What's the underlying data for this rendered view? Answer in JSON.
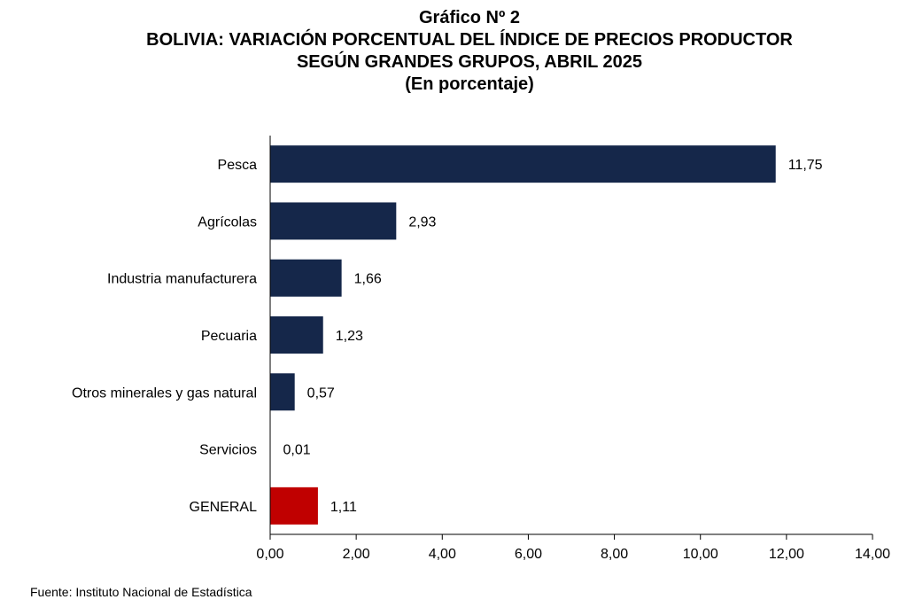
{
  "header": {
    "figure_label": "Gráfico Nº 2",
    "title_line1": "BOLIVIA: VARIACIÓN PORCENTUAL DEL ÍNDICE DE PRECIOS PRODUCTOR",
    "title_line2": "SEGÚN GRANDES GRUPOS, ABRIL 2025",
    "subtitle": "(En porcentaje)"
  },
  "chart_data": {
    "type": "bar",
    "orientation": "horizontal",
    "categories": [
      "Pesca",
      "Agrícolas",
      "Industria manufacturera",
      "Pecuaria",
      "Otros minerales y gas natural",
      "Servicios",
      "GENERAL"
    ],
    "values": [
      11.75,
      2.93,
      1.66,
      1.23,
      0.57,
      0.01,
      1.11
    ],
    "value_labels": [
      "11,75",
      "2,93",
      "1,66",
      "1,23",
      "0,57",
      "0,01",
      "1,11"
    ],
    "xlim": [
      0,
      14
    ],
    "x_ticks": [
      0,
      2,
      4,
      6,
      8,
      10,
      12,
      14
    ],
    "x_tick_labels": [
      "0,00",
      "2,00",
      "4,00",
      "6,00",
      "8,00",
      "10,00",
      "12,00",
      "14,00"
    ],
    "colors": {
      "bar": "#15274a",
      "highlight": "#c00000",
      "axis": "#000000"
    },
    "highlight_category": "GENERAL",
    "grid": false,
    "legend": "none"
  },
  "footer": {
    "source": "Fuente: Instituto Nacional de Estadística"
  }
}
